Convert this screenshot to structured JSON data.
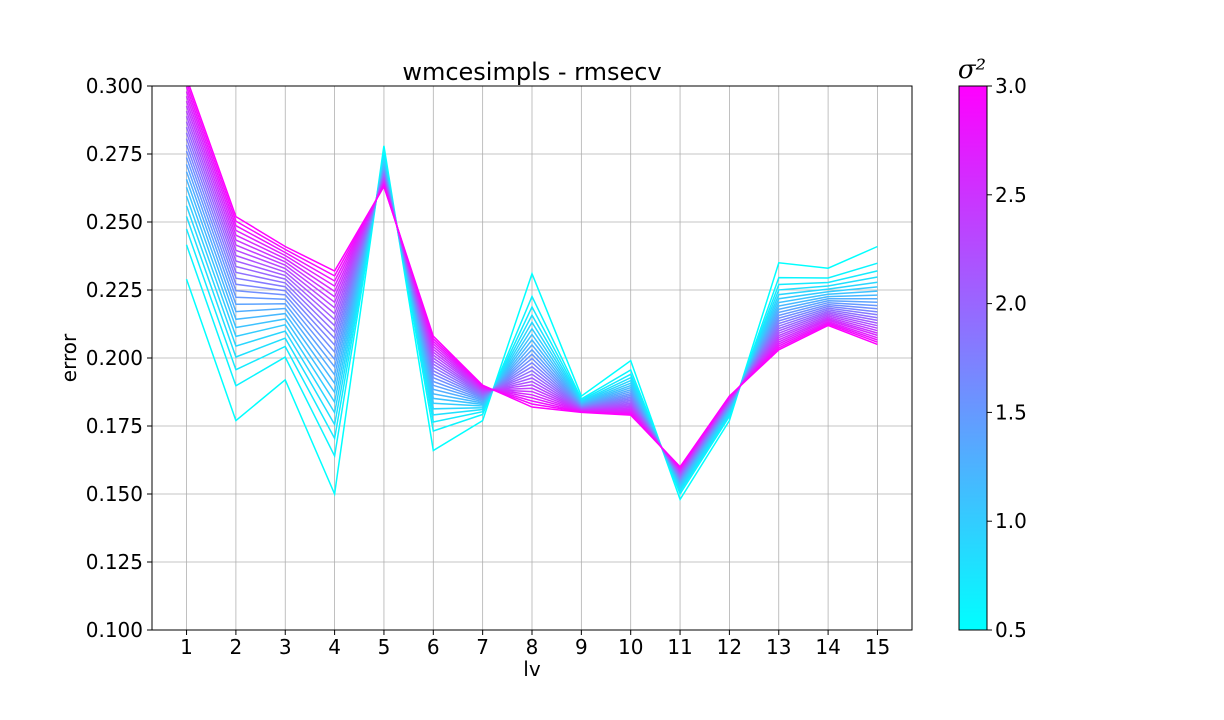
{
  "chart_data": {
    "type": "line",
    "title": "wmcesimpls - rmsecv",
    "xlabel": "lv",
    "ylabel": "error",
    "x": [
      1,
      2,
      3,
      4,
      5,
      6,
      7,
      8,
      9,
      10,
      11,
      12,
      13,
      14,
      15
    ],
    "xticks": [
      "1",
      "2",
      "3",
      "4",
      "5",
      "6",
      "7",
      "8",
      "9",
      "10",
      "11",
      "12",
      "13",
      "14",
      "15"
    ],
    "ylim": [
      0.1,
      0.3
    ],
    "xlim": [
      0.3,
      15.7
    ],
    "yticks": [
      "0.100",
      "0.125",
      "0.150",
      "0.175",
      "0.200",
      "0.225",
      "0.250",
      "0.275",
      "0.300"
    ],
    "grid": true,
    "colormap": "cool",
    "colorbar": {
      "label": "σ²",
      "range": [
        0.5,
        3.0
      ],
      "ticks": [
        "0.5",
        "1.0",
        "1.5",
        "2.0",
        "2.5",
        "3.0"
      ],
      "color_low": "#00ffff",
      "color_high": "#ff00ff"
    },
    "series_count": 26,
    "sigma2_values": [
      0.5,
      0.6,
      0.7,
      0.8,
      0.9,
      1.0,
      1.1,
      1.2,
      1.3,
      1.4,
      1.5,
      1.6,
      1.7,
      1.8,
      1.9,
      2.0,
      2.1,
      2.2,
      2.3,
      2.4,
      2.5,
      2.6,
      2.7,
      2.8,
      2.9,
      3.0
    ],
    "series_low": [
      0.229,
      0.177,
      0.192,
      0.15,
      0.278,
      0.166,
      0.177,
      0.231,
      0.186,
      0.199,
      0.148,
      0.177,
      0.235,
      0.233,
      0.241
    ],
    "series_high": [
      0.303,
      0.252,
      0.241,
      0.232,
      0.263,
      0.208,
      0.19,
      0.182,
      0.18,
      0.179,
      0.16,
      0.186,
      0.203,
      0.212,
      0.205
    ]
  }
}
